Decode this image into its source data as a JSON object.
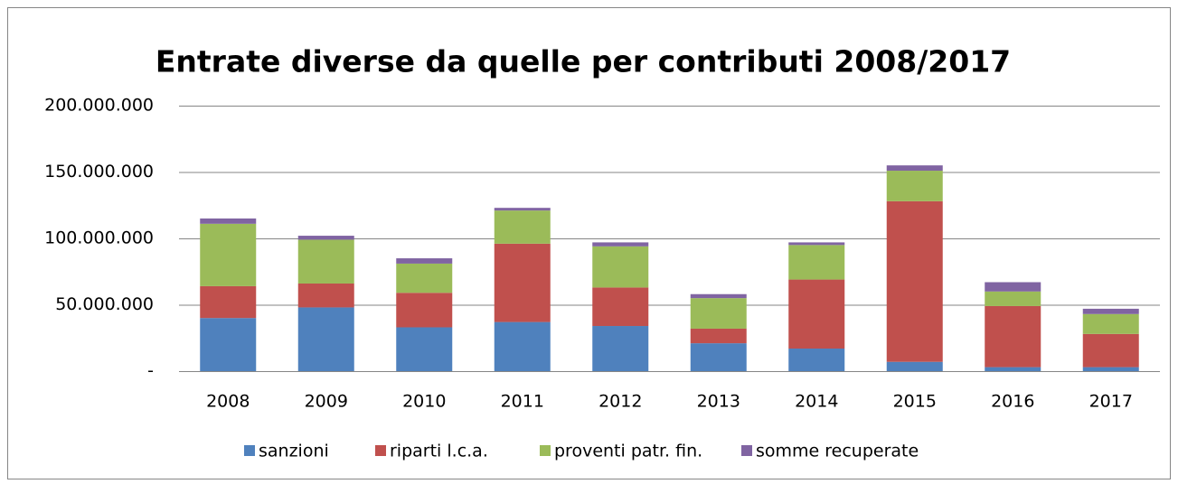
{
  "chart_data": {
    "type": "stacked_bar",
    "title": "Entrate diverse da quelle per contributi 2008/2017",
    "categories": [
      "2008",
      "2009",
      "2010",
      "2011",
      "2012",
      "2013",
      "2014",
      "2015",
      "2016",
      "2017"
    ],
    "series": [
      {
        "name": "sanzioni",
        "color": "#4f81bd",
        "values": [
          40000000,
          48000000,
          33000000,
          37000000,
          34000000,
          21000000,
          17000000,
          7000000,
          3000000,
          3000000
        ]
      },
      {
        "name": "riparti l.c.a.",
        "color": "#c0504d",
        "values": [
          24000000,
          18000000,
          26000000,
          59000000,
          29000000,
          11000000,
          52000000,
          121000000,
          46000000,
          25000000
        ]
      },
      {
        "name": "proventi patr. fin.",
        "color": "#9bbb59",
        "values": [
          47000000,
          33000000,
          22000000,
          25000000,
          31000000,
          23000000,
          26000000,
          23000000,
          11000000,
          15000000
        ]
      },
      {
        "name": "somme recuperate",
        "color": "#8064a2",
        "values": [
          4000000,
          3000000,
          4000000,
          2000000,
          3000000,
          3000000,
          2000000,
          4000000,
          7000000,
          4000000
        ]
      }
    ],
    "ylim": [
      0,
      200000000
    ],
    "yticks": [
      {
        "value": 0,
        "label": "-"
      },
      {
        "value": 50000000,
        "label": "50.000.000"
      },
      {
        "value": 100000000,
        "label": "100.000.000"
      },
      {
        "value": 150000000,
        "label": "150.000.000"
      },
      {
        "value": 200000000,
        "label": "200.000.000"
      }
    ],
    "grid": true,
    "legend": "bottom"
  }
}
